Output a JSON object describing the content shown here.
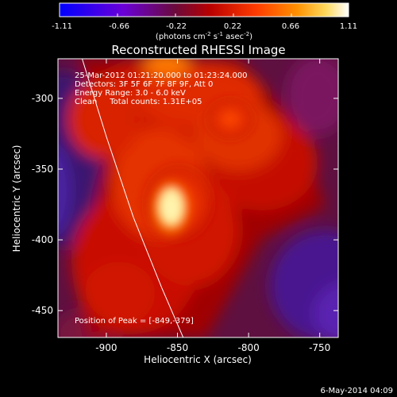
{
  "colorbar": {
    "ticks": [
      "-1.11",
      "-0.66",
      "-0.22",
      "0.22",
      "0.66",
      "1.11"
    ],
    "label_main": "(photons cm",
    "label_exp1": "-2",
    "label_mid": " s",
    "label_exp2": "-1",
    "label_tail": " asec",
    "label_exp3": "-2",
    "label_close": ")"
  },
  "title": "Reconstructed RHESSI Image",
  "annotations": {
    "time": "25-Mar-2012 01:21:20.000 to 01:23:24.000",
    "detectors": "Detectors: 3F 5F 6F 7F 8F 9F, Att 0",
    "energy": "Energy Range: 3.0 - 6.0 keV",
    "clean": "Clean     Total counts: 1.31E+05",
    "peak": "Position of Peak = [-849,-379]"
  },
  "footer": {
    "date": "6-May-2014 04:09"
  },
  "chart_data": {
    "type": "heatmap",
    "title": "Reconstructed RHESSI Image",
    "xlabel": "Heliocentric X (arcsec)",
    "ylabel": "Heliocentric Y (arcsec)",
    "xlim": [
      -934,
      -737
    ],
    "ylim": [
      -469,
      -272
    ],
    "x_ticks": [
      "-900",
      "-850",
      "-800",
      "-750"
    ],
    "x_tick_values": [
      -900,
      -850,
      -800,
      -750
    ],
    "y_ticks": [
      "-300",
      "-350",
      "-400",
      "-450"
    ],
    "y_tick_values": [
      -300,
      -350,
      -400,
      -450
    ],
    "colorbar_range": [
      -1.11,
      1.11
    ],
    "peak_position": [
      -849,
      -379
    ],
    "limb": [
      [
        -917,
        -272
      ],
      [
        -900,
        -327
      ],
      [
        -881,
        -384
      ],
      [
        -861,
        -434
      ],
      [
        -846,
        -469
      ]
    ]
  }
}
